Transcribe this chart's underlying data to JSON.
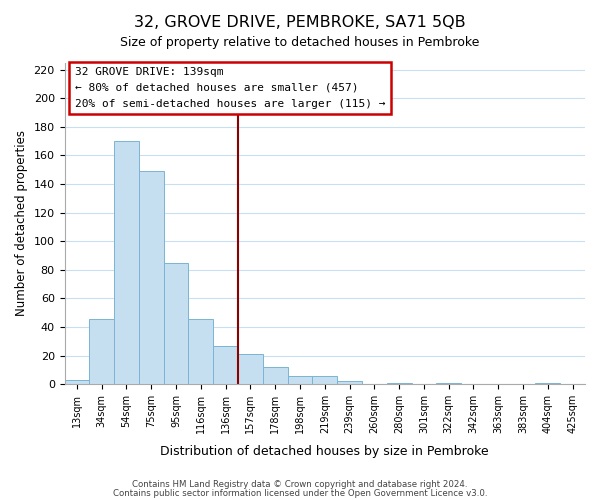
{
  "title": "32, GROVE DRIVE, PEMBROKE, SA71 5QB",
  "subtitle": "Size of property relative to detached houses in Pembroke",
  "xlabel": "Distribution of detached houses by size in Pembroke",
  "ylabel": "Number of detached properties",
  "bin_labels": [
    "13sqm",
    "34sqm",
    "54sqm",
    "75sqm",
    "95sqm",
    "116sqm",
    "136sqm",
    "157sqm",
    "178sqm",
    "198sqm",
    "219sqm",
    "239sqm",
    "260sqm",
    "280sqm",
    "301sqm",
    "322sqm",
    "342sqm",
    "363sqm",
    "383sqm",
    "404sqm",
    "425sqm"
  ],
  "bar_heights": [
    3,
    46,
    170,
    149,
    85,
    46,
    27,
    21,
    12,
    6,
    6,
    2,
    0,
    1,
    0,
    1,
    0,
    0,
    0,
    1,
    0
  ],
  "bar_color": "#c6dff0",
  "bar_edge_color": "#7ab4d4",
  "vline_position": 6.5,
  "vline_color": "#8b0000",
  "ylim": [
    0,
    225
  ],
  "yticks": [
    0,
    20,
    40,
    60,
    80,
    100,
    120,
    140,
    160,
    180,
    200,
    220
  ],
  "annotation_title": "32 GROVE DRIVE: 139sqm",
  "annotation_line1": "← 80% of detached houses are smaller (457)",
  "annotation_line2": "20% of semi-detached houses are larger (115) →",
  "footer1": "Contains HM Land Registry data © Crown copyright and database right 2024.",
  "footer2": "Contains public sector information licensed under the Open Government Licence v3.0.",
  "background_color": "#ffffff",
  "grid_color": "#c8dff0"
}
